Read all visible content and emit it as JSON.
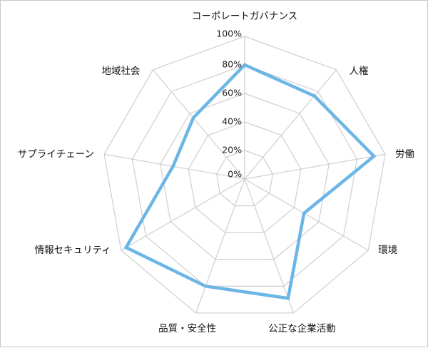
{
  "chart_data": {
    "type": "radar",
    "title": "",
    "axes": [
      "コーポレートガバナンス",
      "人権",
      "労働",
      "環境",
      "公正な企業活動",
      "品質・安全性",
      "情報セキュリティ",
      "サプライチェーン",
      "地域社会"
    ],
    "tick_labels": [
      "0%",
      "20%",
      "40%",
      "60%",
      "80%",
      "100%"
    ],
    "range": [
      0,
      100
    ],
    "series": [
      {
        "values": [
          80,
          76,
          92,
          48,
          89,
          80,
          96,
          51,
          56
        ],
        "color": "#6cb6e6"
      }
    ],
    "grid": true,
    "legend": "none"
  }
}
